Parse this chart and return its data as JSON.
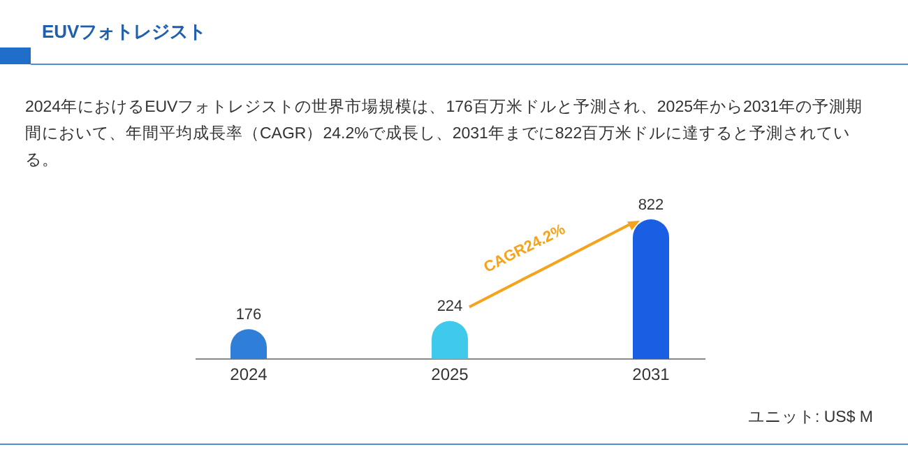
{
  "chart_data": {
    "type": "bar",
    "title": "EUVフォトレジスト",
    "subtitle": "2024年におけるEUVフォトレジストの世界市場規模は、176百万米ドルと予測され、2025年から2031年の予測期間において、年間平均成長率（CAGR）24.2%で成長し、2031年までに822百万米ドルに達すると予測されている。",
    "categories": [
      "2024",
      "2025",
      "2031"
    ],
    "values": [
      176,
      224,
      822
    ],
    "colors": [
      "#2f7fd8",
      "#3fcaec",
      "#1a5fe3"
    ],
    "data_labels": true,
    "annotations": [
      "CAGR24.2%",
      "ユニット: US$ M"
    ]
  }
}
